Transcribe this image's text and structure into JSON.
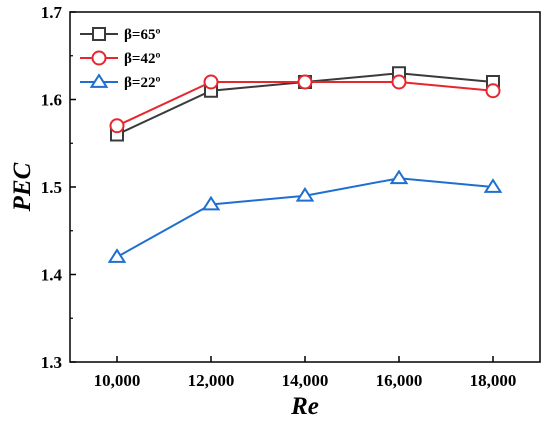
{
  "chart_data": {
    "type": "line",
    "xlabel": "Re",
    "ylabel": "PEC",
    "x": [
      10000,
      12000,
      14000,
      16000,
      18000
    ],
    "x_tick_labels": [
      "10,000",
      "12,000",
      "14,000",
      "16,000",
      "18,000"
    ],
    "xlim": [
      9000,
      19000
    ],
    "ylim": [
      1.3,
      1.7
    ],
    "y_ticks": [
      1.3,
      1.4,
      1.5,
      1.6,
      1.7
    ],
    "y_tick_labels": [
      "1.3",
      "1.4",
      "1.5",
      "1.6",
      "1.7"
    ],
    "grid": false,
    "legend_position": "top-left",
    "series": [
      {
        "name": "β=65º",
        "values": [
          1.56,
          1.61,
          1.62,
          1.63,
          1.62
        ],
        "color": "#3a3a3a",
        "marker": "square"
      },
      {
        "name": "β=42º",
        "values": [
          1.57,
          1.62,
          1.62,
          1.62,
          1.61
        ],
        "color": "#e8262d",
        "marker": "circle"
      },
      {
        "name": "β=22º",
        "values": [
          1.42,
          1.48,
          1.49,
          1.51,
          1.5
        ],
        "color": "#1f6fd1",
        "marker": "triangle"
      }
    ]
  }
}
